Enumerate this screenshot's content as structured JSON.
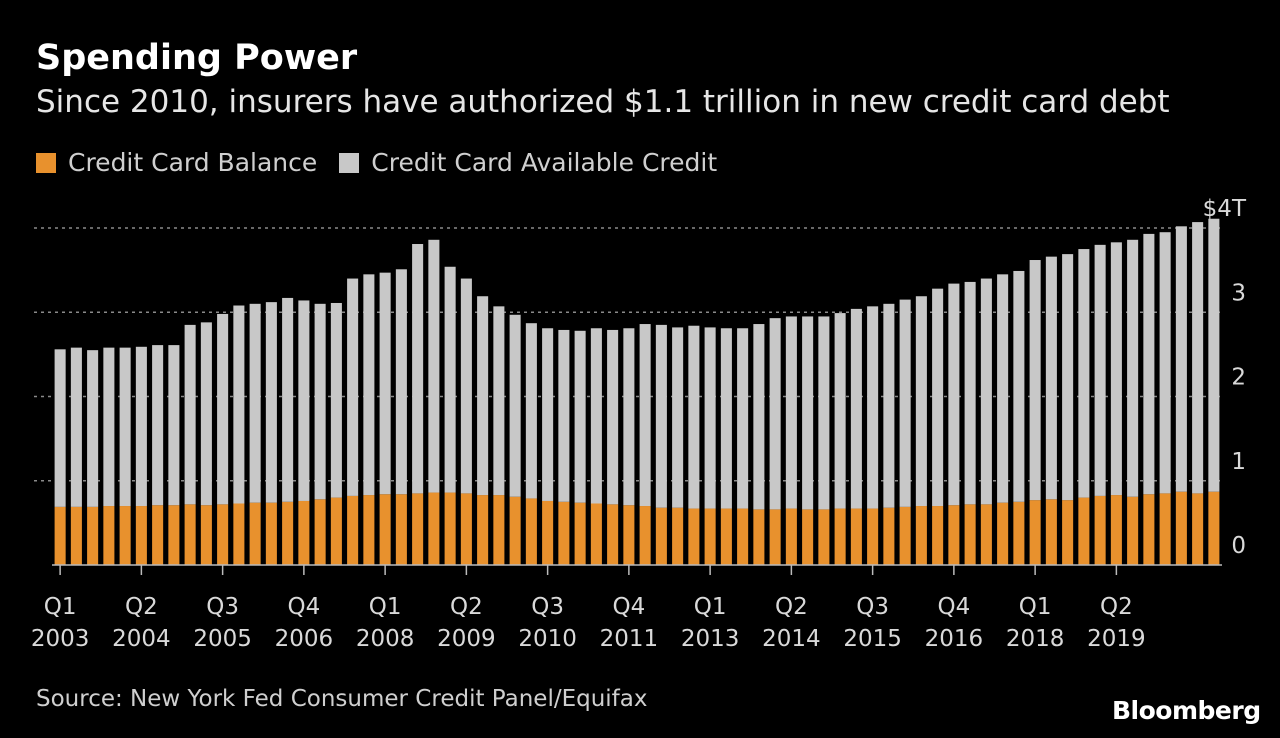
{
  "title": "Spending Power",
  "subtitle": "Since 2010, insurers have authorized $1.1 trillion in new credit card debt",
  "legend": [
    {
      "label": "Credit Card Balance",
      "color": "#e8912d"
    },
    {
      "label": "Credit Card Available Credit",
      "color": "#c8c8c8"
    }
  ],
  "source": "Source: New York Fed Consumer Credit Panel/Equifax",
  "logo": "Bloomberg",
  "chart_data": {
    "type": "bar",
    "stacked": true,
    "ylim": [
      0,
      4
    ],
    "y_ticks": [
      "0",
      "1",
      "2",
      "3",
      "$4T"
    ],
    "grid": "dotted horizontal",
    "x_ticks": [
      {
        "quarter": "Q1",
        "year": "2003"
      },
      {
        "quarter": "Q2",
        "year": "2004"
      },
      {
        "quarter": "Q3",
        "year": "2005"
      },
      {
        "quarter": "Q4",
        "year": "2006"
      },
      {
        "quarter": "Q1",
        "year": "2008"
      },
      {
        "quarter": "Q2",
        "year": "2009"
      },
      {
        "quarter": "Q3",
        "year": "2010"
      },
      {
        "quarter": "Q4",
        "year": "2011"
      },
      {
        "quarter": "Q1",
        "year": "2013"
      },
      {
        "quarter": "Q2",
        "year": "2014"
      },
      {
        "quarter": "Q3",
        "year": "2015"
      },
      {
        "quarter": "Q4",
        "year": "2016"
      },
      {
        "quarter": "Q1",
        "year": "2018"
      },
      {
        "quarter": "Q2",
        "year": "2019"
      }
    ],
    "series": [
      {
        "name": "Credit Card Balance",
        "color": "#e8912d",
        "values": [
          0.69,
          0.69,
          0.69,
          0.7,
          0.7,
          0.7,
          0.71,
          0.71,
          0.72,
          0.71,
          0.72,
          0.73,
          0.74,
          0.74,
          0.75,
          0.76,
          0.78,
          0.8,
          0.82,
          0.83,
          0.84,
          0.84,
          0.85,
          0.86,
          0.86,
          0.85,
          0.83,
          0.83,
          0.81,
          0.79,
          0.76,
          0.75,
          0.74,
          0.73,
          0.72,
          0.71,
          0.7,
          0.68,
          0.68,
          0.67,
          0.67,
          0.67,
          0.67,
          0.66,
          0.66,
          0.67,
          0.66,
          0.66,
          0.67,
          0.67,
          0.67,
          0.68,
          0.69,
          0.7,
          0.7,
          0.71,
          0.72,
          0.72,
          0.74,
          0.75,
          0.77,
          0.78,
          0.77,
          0.8,
          0.82,
          0.83,
          0.81,
          0.84,
          0.85,
          0.87,
          0.85,
          0.87
        ]
      },
      {
        "name": "Credit Card Available Credit",
        "color": "#c8c8c8",
        "values": [
          1.87,
          1.89,
          1.86,
          1.88,
          1.88,
          1.89,
          1.9,
          1.9,
          2.13,
          2.17,
          2.26,
          2.35,
          2.36,
          2.38,
          2.42,
          2.38,
          2.32,
          2.31,
          2.58,
          2.62,
          2.63,
          2.67,
          2.96,
          3.0,
          2.68,
          2.55,
          2.36,
          2.24,
          2.16,
          2.08,
          2.05,
          2.04,
          2.04,
          2.08,
          2.07,
          2.1,
          2.16,
          2.17,
          2.14,
          2.17,
          2.15,
          2.14,
          2.14,
          2.2,
          2.27,
          2.28,
          2.29,
          2.29,
          2.32,
          2.37,
          2.4,
          2.42,
          2.46,
          2.49,
          2.58,
          2.63,
          2.64,
          2.68,
          2.71,
          2.74,
          2.85,
          2.88,
          2.92,
          2.95,
          2.98,
          3.0,
          3.05,
          3.09,
          3.1,
          3.15,
          3.22,
          3.24
        ]
      }
    ]
  }
}
